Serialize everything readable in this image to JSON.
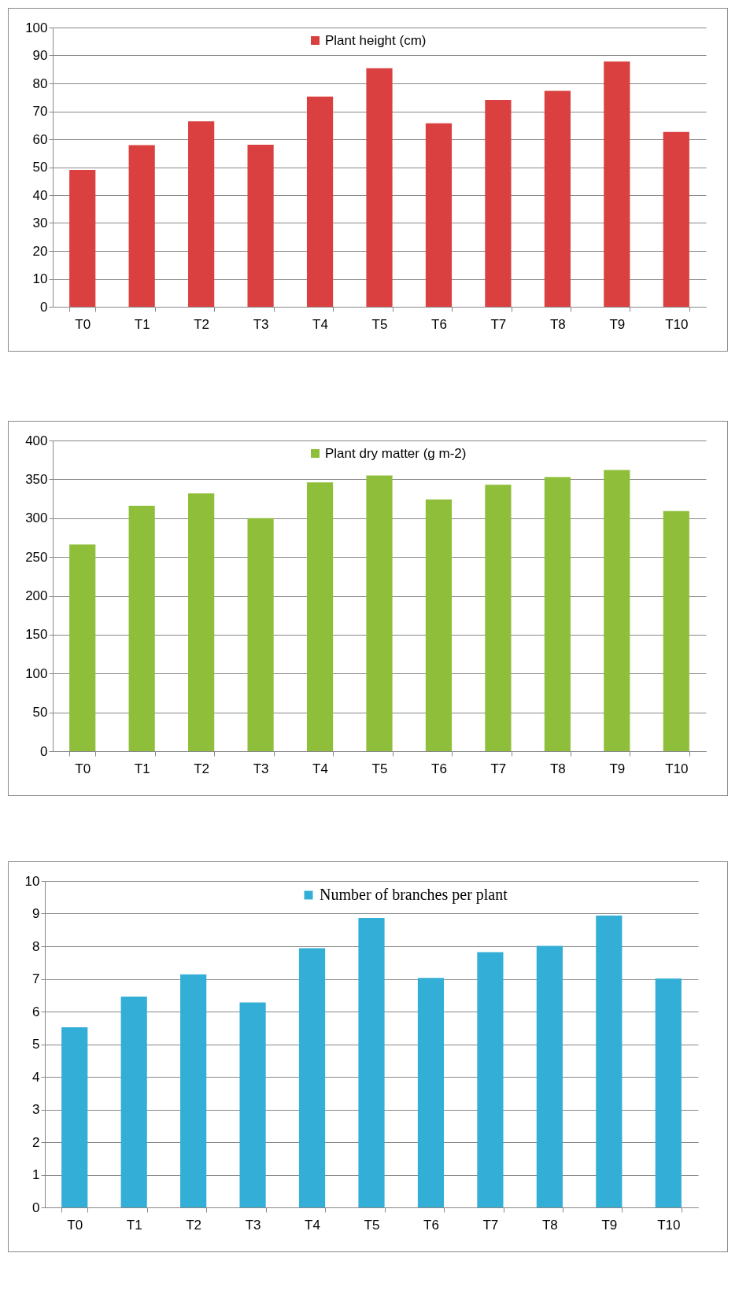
{
  "chart_data": [
    {
      "type": "bar",
      "categories": [
        "T0",
        "T1",
        "T2",
        "T3",
        "T4",
        "T5",
        "T6",
        "T7",
        "T8",
        "T9",
        "T10"
      ],
      "series": [
        {
          "name": "Plant height (cm)",
          "color": "#d9403f",
          "values": [
            49.0,
            57.9,
            66.4,
            58.0,
            75.3,
            85.4,
            65.7,
            74.1,
            77.3,
            87.8,
            62.6
          ]
        }
      ],
      "ylim": [
        0,
        100
      ],
      "yticks": [
        0,
        10,
        20,
        30,
        40,
        50,
        60,
        70,
        80,
        90,
        100
      ],
      "grid": "y",
      "legend": "top"
    },
    {
      "type": "bar",
      "categories": [
        "T0",
        "T1",
        "T2",
        "T3",
        "T4",
        "T5",
        "T6",
        "T7",
        "T8",
        "T9",
        "T10"
      ],
      "series": [
        {
          "name": "Plant dry matter (g m-2)",
          "color": "#8fbf3a",
          "values": [
            266,
            316,
            332,
            300,
            346,
            355,
            324,
            343,
            353,
            362,
            309
          ]
        }
      ],
      "ylim": [
        0,
        400
      ],
      "yticks": [
        0,
        50,
        100,
        150,
        200,
        250,
        300,
        350,
        400
      ],
      "grid": "y",
      "legend": "top"
    },
    {
      "type": "bar",
      "categories": [
        "T0",
        "T1",
        "T2",
        "T3",
        "T4",
        "T5",
        "T6",
        "T7",
        "T8",
        "T9",
        "T10"
      ],
      "series": [
        {
          "name": "Number of branches per plant",
          "color": "#33aed6",
          "values": [
            5.52,
            6.46,
            7.14,
            6.28,
            7.94,
            8.87,
            7.03,
            7.82,
            8.01,
            8.94,
            7.01
          ]
        }
      ],
      "ylim": [
        0,
        10
      ],
      "yticks": [
        0,
        1,
        2,
        3,
        4,
        5,
        6,
        7,
        8,
        9,
        10
      ],
      "grid": "y",
      "legend": "top"
    }
  ]
}
